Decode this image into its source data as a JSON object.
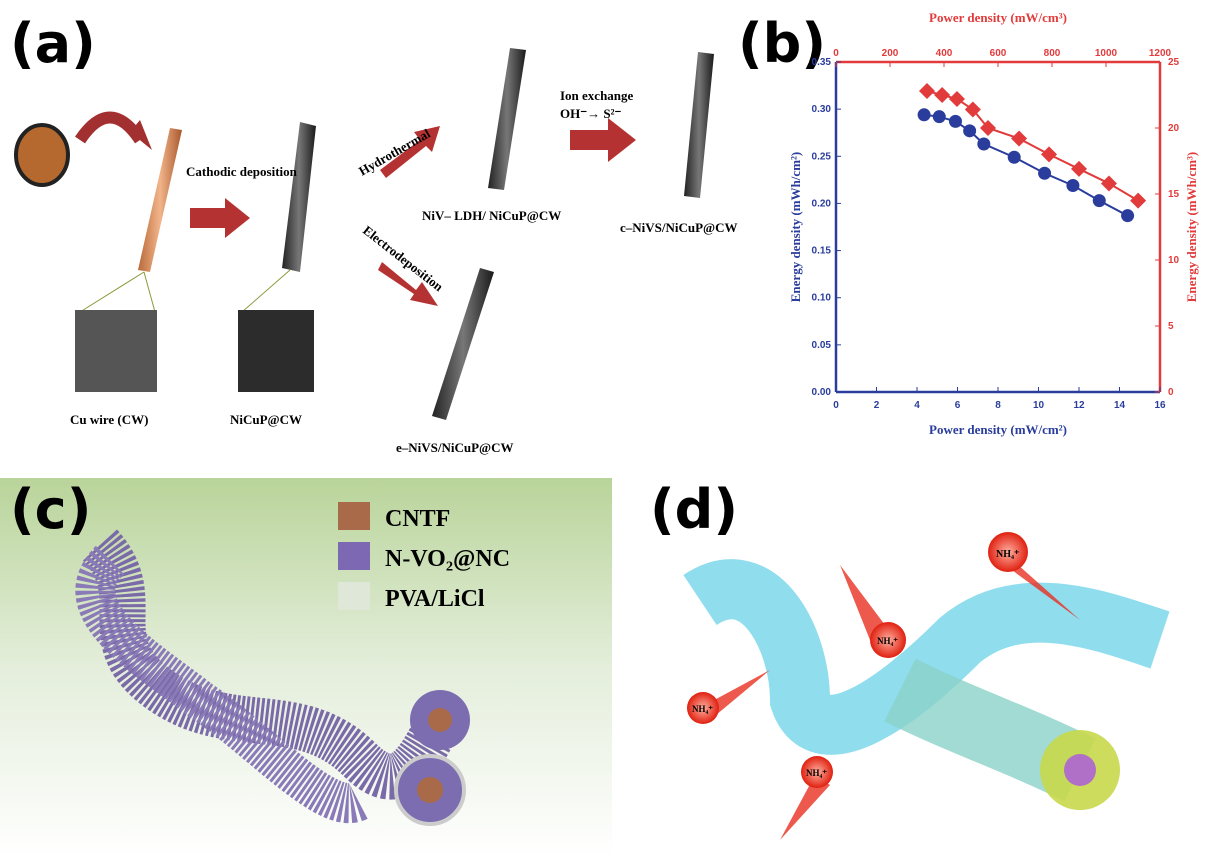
{
  "panel_a": {
    "label": "(a)",
    "arrows": [
      "Cathodic deposition",
      "Hydrothermal",
      "Electrodeposition"
    ],
    "ion_exchange": "Ion exchange",
    "reaction": "OH⁻→ S²⁻",
    "products": [
      "Cu wire (CW)",
      "NiCuP@CW",
      "NiV– LDH/ NiCuP@CW",
      "c–NiVS/NiCuP@CW",
      "e–NiVS/NiCuP@CW"
    ]
  },
  "chart_data": {
    "type": "line",
    "panel_label": "(b)",
    "xlabel": "Power density (mW/cm²)",
    "x2label": "Power density (mW/cm³)",
    "ylabel": "Energy density (mWh/cm²)",
    "y2label": "Energy density (mWh/cm³)",
    "xlim": [
      0,
      16
    ],
    "xticks": [
      0,
      2,
      4,
      6,
      8,
      10,
      12,
      14,
      16
    ],
    "x2lim": [
      0,
      1200
    ],
    "x2ticks": [
      0,
      200,
      400,
      600,
      800,
      1000,
      1200
    ],
    "ylim": [
      0,
      0.35
    ],
    "yticks": [
      {
        "value": 0,
        "label": "0.00"
      },
      {
        "value": 0.05,
        "label": "0.05"
      },
      {
        "value": 0.1,
        "label": "0.10"
      },
      {
        "value": 0.15,
        "label": "0.15"
      },
      {
        "value": 0.2,
        "label": "0.20"
      },
      {
        "value": 0.25,
        "label": "0.25"
      },
      {
        "value": 0.3,
        "label": "0.30"
      },
      {
        "value": 0.35,
        "label": "0.35"
      }
    ],
    "y2lim": [
      0,
      25
    ],
    "y2ticks": [
      0,
      5,
      10,
      15,
      20,
      25
    ],
    "series": [
      {
        "color": "#2a3d9c",
        "marker": "circle",
        "x": [
          4.35,
          5.1,
          5.9,
          6.6,
          7.3,
          8.8,
          10.3,
          11.7,
          13.0,
          14.4
        ],
        "values": [
          0.294,
          0.292,
          0.287,
          0.277,
          0.263,
          0.249,
          0.232,
          0.219,
          0.203,
          0.187
        ]
      },
      {
        "color": "#e23b3b",
        "marker": "diamond",
        "axis": "y2",
        "xaxis": "x2",
        "x": [
          337,
          393,
          448,
          507,
          563,
          678,
          789,
          900,
          1011,
          1119
        ],
        "values": [
          22.8,
          22.5,
          22.2,
          21.4,
          20.0,
          19.2,
          18.0,
          16.9,
          15.8,
          14.5
        ]
      }
    ]
  },
  "panel_c": {
    "label": "(c)",
    "legend": [
      "CNTF",
      "N-VO₂@NC",
      "PVA/LiCl"
    ]
  },
  "panel_d": {
    "label": "(d)",
    "ions": [
      "NH₄⁺",
      "NH₄⁺",
      "NH₄⁺",
      "NH₄⁺"
    ]
  }
}
